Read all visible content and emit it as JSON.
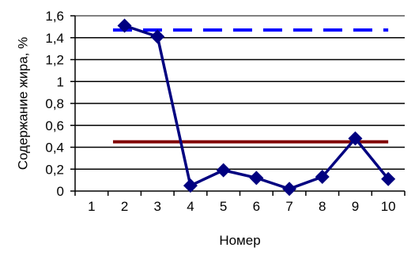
{
  "chart_data": {
    "type": "line",
    "title": "",
    "xlabel": "Номер",
    "ylabel": "Содержание жира, %",
    "x": [
      "1",
      "2",
      "3",
      "4",
      "5",
      "6",
      "7",
      "8",
      "9",
      "10"
    ],
    "ylim": [
      0,
      1.6
    ],
    "y_ticks": [
      0,
      0.2,
      0.4,
      0.6,
      0.8,
      1,
      1.2,
      1.4,
      1.6
    ],
    "y_tick_labels": [
      "0",
      "0,2",
      "0,4",
      "0,6",
      "0,8",
      "1",
      "1,2",
      "1,4",
      "1,6"
    ],
    "grid": true,
    "legend": "none",
    "series": [
      {
        "values": [
          null,
          1.51,
          1.41,
          0.05,
          0.19,
          0.12,
          0.02,
          0.13,
          0.48,
          0.11
        ],
        "color": "#000080",
        "marker": "diamond",
        "line_style": "solid"
      }
    ],
    "reference_lines": [
      {
        "value": 1.47,
        "color": "#0000ff",
        "line_style": "dashed",
        "x_from": "2",
        "x_to": "10"
      },
      {
        "value": 0.45,
        "color": "#800000",
        "line_style": "solid",
        "x_from": "2",
        "x_to": "10"
      }
    ],
    "colors": {
      "gridline": "#000000",
      "top_gridline": "#808080",
      "axis": "#000000"
    }
  }
}
